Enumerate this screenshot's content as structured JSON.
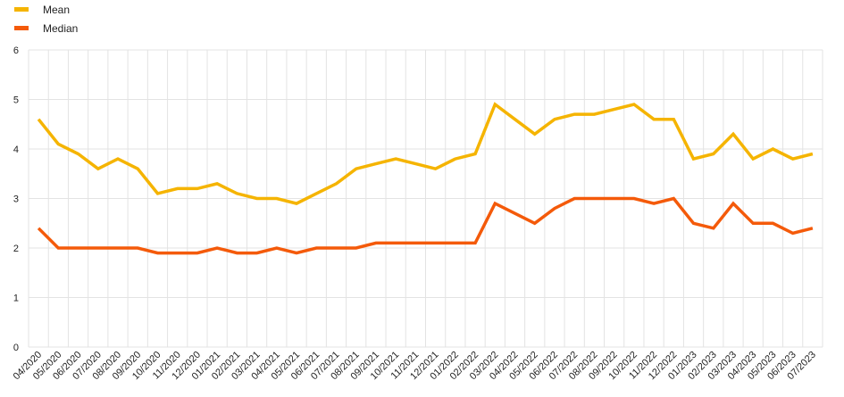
{
  "chart_data": {
    "type": "line",
    "x": [
      "04/2020",
      "05/2020",
      "06/2020",
      "07/2020",
      "08/2020",
      "09/2020",
      "10/2020",
      "11/2020",
      "12/2020",
      "01/2021",
      "02/2021",
      "03/2021",
      "04/2021",
      "05/2021",
      "06/2021",
      "07/2021",
      "08/2021",
      "09/2021",
      "10/2021",
      "11/2021",
      "12/2021",
      "01/2022",
      "02/2022",
      "03/2022",
      "04/2022",
      "05/2022",
      "06/2022",
      "07/2022",
      "08/2022",
      "09/2022",
      "10/2022",
      "11/2022",
      "12/2022",
      "01/2023",
      "02/2023",
      "03/2023",
      "04/2023",
      "05/2023",
      "06/2023",
      "07/2023"
    ],
    "series": [
      {
        "name": "Mean",
        "color": "#F5B400",
        "values": [
          4.6,
          4.1,
          3.9,
          3.6,
          3.8,
          3.6,
          3.1,
          3.2,
          3.2,
          3.3,
          3.1,
          3.0,
          3.0,
          2.9,
          3.1,
          3.3,
          3.6,
          3.7,
          3.8,
          3.7,
          3.6,
          3.8,
          3.9,
          4.9,
          4.6,
          4.3,
          4.6,
          4.7,
          4.7,
          4.8,
          4.9,
          4.6,
          4.6,
          3.8,
          3.9,
          4.3,
          3.8,
          4.0,
          3.8,
          3.9
        ]
      },
      {
        "name": "Median",
        "color": "#F45A0A",
        "values": [
          2.4,
          2.0,
          2.0,
          2.0,
          2.0,
          2.0,
          1.9,
          1.9,
          1.9,
          2.0,
          1.9,
          1.9,
          2.0,
          1.9,
          2.0,
          2.0,
          2.0,
          2.1,
          2.1,
          2.1,
          2.1,
          2.1,
          2.1,
          2.9,
          2.7,
          2.5,
          2.8,
          3.0,
          3.0,
          3.0,
          3.0,
          2.9,
          3.0,
          2.5,
          2.4,
          2.9,
          2.5,
          2.5,
          2.3,
          2.4
        ]
      }
    ],
    "yticks": [
      "0",
      "1",
      "2",
      "3",
      "4",
      "5",
      "6"
    ],
    "ylim": [
      0,
      6
    ],
    "grid": true,
    "legend_position": "top-left"
  }
}
